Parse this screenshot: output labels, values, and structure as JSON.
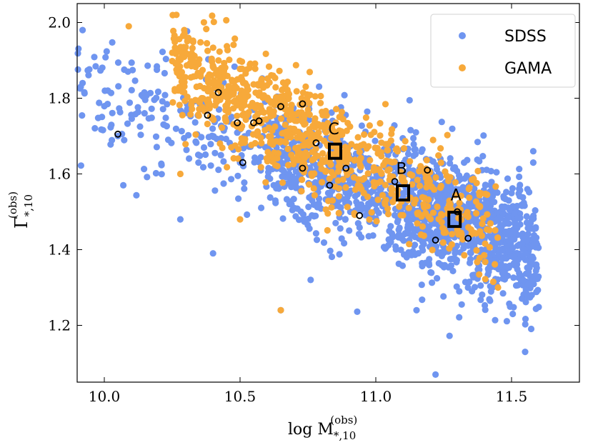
{
  "chart_data": {
    "type": "scatter",
    "xlabel": "log M",
    "xlabel_sub": "*,10",
    "xlabel_sup": "(obs)",
    "ylabel": "Γ",
    "ylabel_sub": "*,10",
    "ylabel_sup": "(obs)",
    "xlim": [
      9.9,
      11.75
    ],
    "ylim": [
      1.05,
      2.05
    ],
    "xticks": [
      10.0,
      10.5,
      11.0,
      11.5
    ],
    "xtick_labels": [
      "10.0",
      "10.5",
      "11.0",
      "11.5"
    ],
    "yticks": [
      1.2,
      1.4,
      1.6,
      1.8,
      2.0
    ],
    "ytick_labels": [
      "1.2",
      "1.4",
      "1.6",
      "1.8",
      "2.0"
    ],
    "legend_placement": "top-right",
    "series": [
      {
        "name": "SDSS",
        "color": "#6f95f0",
        "center_trend": [
          [
            10.0,
            1.82
          ],
          [
            11.5,
            1.42
          ]
        ],
        "spread": 0.08,
        "point_clusters": [
          {
            "x_range": [
              9.9,
              10.6
            ],
            "n": 200
          },
          {
            "x_range": [
              10.6,
              11.1
            ],
            "n": 500
          },
          {
            "x_range": [
              11.1,
              11.6
            ],
            "n": 900
          }
        ],
        "outliers": [
          [
            9.92,
            1.98
          ],
          [
            9.92,
            1.84
          ],
          [
            10.05,
            1.7
          ],
          [
            10.07,
            1.57
          ],
          [
            10.28,
            1.48
          ],
          [
            10.65,
            1.24
          ],
          [
            11.15,
            1.24
          ],
          [
            11.22,
            1.07
          ],
          [
            11.55,
            1.13
          ],
          [
            11.58,
            1.63
          ],
          [
            11.58,
            1.66
          ],
          [
            10.76,
            1.32
          ],
          [
            11.43,
            1.3
          ],
          [
            10.5,
            1.63
          ]
        ]
      },
      {
        "name": "GAMA",
        "color": "#f7a93a",
        "center_trend": [
          [
            10.3,
            1.88
          ],
          [
            11.4,
            1.45
          ]
        ],
        "spread": 0.07,
        "point_clusters": [
          {
            "x_range": [
              10.25,
              10.9
            ],
            "n": 600
          },
          {
            "x_range": [
              10.9,
              11.45
            ],
            "n": 250
          }
        ],
        "outliers": [
          [
            10.09,
            1.99
          ],
          [
            10.65,
            1.24
          ],
          [
            10.5,
            1.48
          ],
          [
            10.28,
            1.6
          ],
          [
            11.45,
            1.3
          ]
        ]
      }
    ],
    "highlighted_points": [
      [
        10.05,
        1.705
      ],
      [
        10.38,
        1.755
      ],
      [
        10.42,
        1.815
      ],
      [
        10.49,
        1.735
      ],
      [
        10.51,
        1.63
      ],
      [
        10.55,
        1.735
      ],
      [
        10.57,
        1.74
      ],
      [
        10.65,
        1.778
      ],
      [
        10.73,
        1.785
      ],
      [
        10.73,
        1.615
      ],
      [
        10.78,
        1.682
      ],
      [
        10.83,
        1.57
      ],
      [
        10.89,
        1.615
      ],
      [
        10.94,
        1.49
      ],
      [
        11.07,
        1.58
      ],
      [
        11.19,
        1.61
      ],
      [
        11.22,
        1.425
      ],
      [
        11.3,
        1.5
      ],
      [
        11.34,
        1.43
      ]
    ],
    "annotations": [
      {
        "label": "A",
        "x": 11.29,
        "y": 1.48,
        "label_x": 11.295,
        "label_y": 1.545
      },
      {
        "label": "B",
        "x": 11.1,
        "y": 1.55,
        "label_x": 11.095,
        "label_y": 1.615
      },
      {
        "label": "C",
        "x": 10.85,
        "y": 1.66,
        "label_x": 10.845,
        "label_y": 1.72
      }
    ]
  }
}
